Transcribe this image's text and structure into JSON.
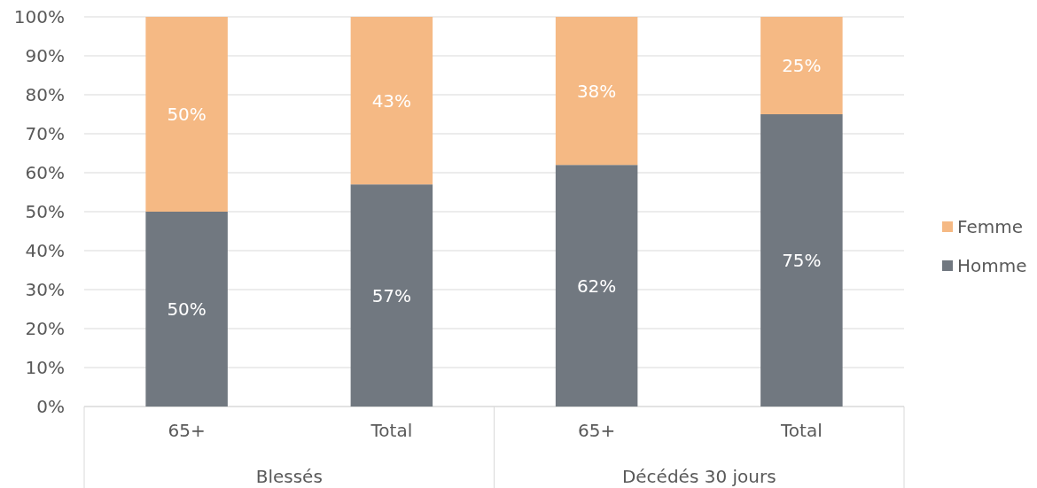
{
  "chart_data": {
    "type": "bar",
    "stacked": true,
    "categories": [
      "65+",
      "Total",
      "65+",
      "Total"
    ],
    "series": [
      {
        "name": "Homme",
        "color": "#717880",
        "values": [
          50,
          57,
          62,
          75
        ],
        "value_labels": [
          "50%",
          "57%",
          "62%",
          "75%"
        ]
      },
      {
        "name": "Femme",
        "color": "#f5b984",
        "values": [
          50,
          43,
          38,
          25
        ],
        "value_labels": [
          "50%",
          "43%",
          "38%",
          "25%"
        ]
      }
    ],
    "ylim": [
      0,
      100
    ],
    "yticks": [
      {
        "value": 0,
        "label": "0%"
      },
      {
        "value": 10,
        "label": "10%"
      },
      {
        "value": 20,
        "label": "20%"
      },
      {
        "value": 30,
        "label": "30%"
      },
      {
        "value": 40,
        "label": "40%"
      },
      {
        "value": 50,
        "label": "50%"
      },
      {
        "value": 60,
        "label": "60%"
      },
      {
        "value": 70,
        "label": "70%"
      },
      {
        "value": 80,
        "label": "80%"
      },
      {
        "value": 90,
        "label": "90%"
      },
      {
        "value": 100,
        "label": "100%"
      }
    ],
    "grid": "y",
    "legend": "right",
    "annotations": [
      "Blessés",
      "Décédés 30 jours"
    ]
  }
}
